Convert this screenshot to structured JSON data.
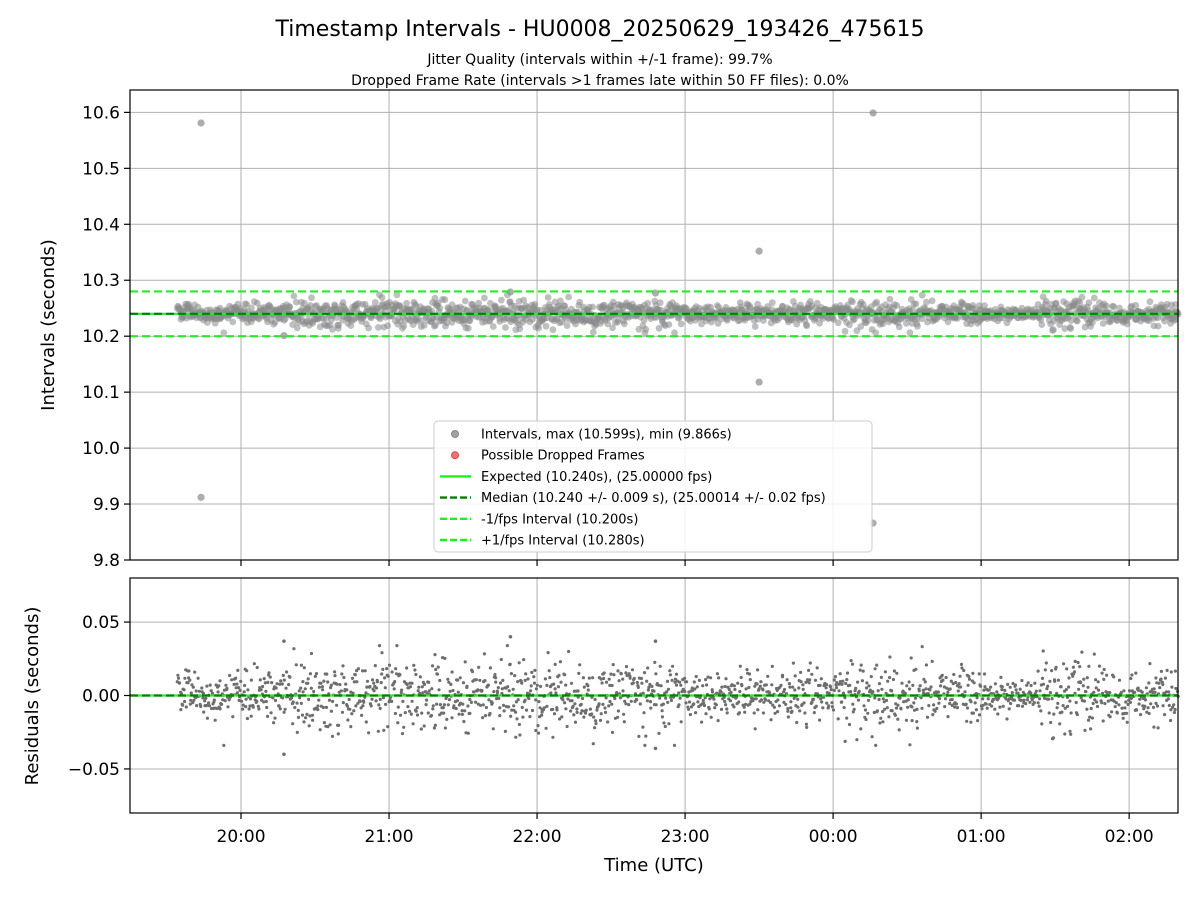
{
  "chart_data": {
    "type": "scatter",
    "title": "Timestamp Intervals - HU0008_20250629_193426_475615",
    "subtitles": [
      "Jitter Quality (intervals within +/-1 frame): 99.7%",
      "Dropped Frame Rate (intervals >1 frames late within 50 FF files): 0.0%"
    ],
    "xlabel": "Time (UTC)",
    "x_ticks": [
      "20:00",
      "21:00",
      "22:00",
      "23:00",
      "00:00",
      "01:00",
      "02:00"
    ],
    "x_range_hours": [
      19.25,
      26.33
    ],
    "data_start_hours": 19.57,
    "data_end_hours": 26.33,
    "grid": true,
    "legend_placement": "lower-center",
    "panels": [
      {
        "name": "intervals",
        "ylabel": "Intervals (seconds)",
        "ylim": [
          9.8,
          10.64
        ],
        "y_ticks": [
          "10.6",
          "10.5",
          "10.4",
          "10.3",
          "10.2",
          "10.1",
          "10.0",
          "9.9",
          "9.8"
        ],
        "y_tick_values": [
          10.6,
          10.5,
          10.4,
          10.3,
          10.2,
          10.1,
          10.0,
          9.9,
          9.8
        ],
        "expected": 10.24,
        "median": 10.24,
        "lower_interval": 10.2,
        "upper_interval": 10.28,
        "noise_std": 0.009,
        "outliers": [
          {
            "x": 19.73,
            "y": 10.581
          },
          {
            "x": 19.73,
            "y": 9.912
          },
          {
            "x": 23.5,
            "y": 10.352
          },
          {
            "x": 23.5,
            "y": 10.118
          },
          {
            "x": 24.27,
            "y": 10.599
          },
          {
            "x": 24.27,
            "y": 9.866
          },
          {
            "x": 20.29,
            "y": 10.201
          },
          {
            "x": 21.82,
            "y": 10.279
          },
          {
            "x": 22.8,
            "y": 10.277
          }
        ]
      },
      {
        "name": "residuals",
        "ylabel": "Residuals (seconds)",
        "ylim": [
          -0.08,
          0.08
        ],
        "y_ticks": [
          "0.05",
          "0.00",
          "−0.05"
        ],
        "y_tick_values": [
          0.05,
          0.0,
          -0.05
        ],
        "zero_line": 0.0,
        "extremes": [
          {
            "x": 20.29,
            "y": 0.037
          },
          {
            "x": 20.29,
            "y": -0.04
          },
          {
            "x": 21.82,
            "y": 0.04
          },
          {
            "x": 22.8,
            "y": 0.037
          },
          {
            "x": 22.8,
            "y": -0.036
          }
        ]
      }
    ],
    "legend": [
      {
        "label": "Intervals, max (10.599s), min (9.866s)",
        "kind": "marker",
        "color": "#a0a0a0"
      },
      {
        "label": "Possible Dropped Frames",
        "kind": "marker",
        "color": "#f07070"
      },
      {
        "label": "Expected (10.240s), (25.00000 fps)",
        "kind": "solid",
        "color": "#22ee22"
      },
      {
        "label": "Median (10.240 +/- 0.009 s), (25.00014 +/- 0.02 fps)",
        "kind": "dashed",
        "color": "#0a7a0a"
      },
      {
        "label": "-1/fps Interval (10.200s)",
        "kind": "dashed",
        "color": "#22ee22"
      },
      {
        "label": "+1/fps Interval (10.280s)",
        "kind": "dashed",
        "color": "#22ee22"
      }
    ],
    "colors": {
      "interval_points": "#8a8a8a",
      "residual_points": "#6e6e6e",
      "expected": "#22ee22",
      "median": "#0a7a0a",
      "bounds": "#22ee22"
    }
  }
}
